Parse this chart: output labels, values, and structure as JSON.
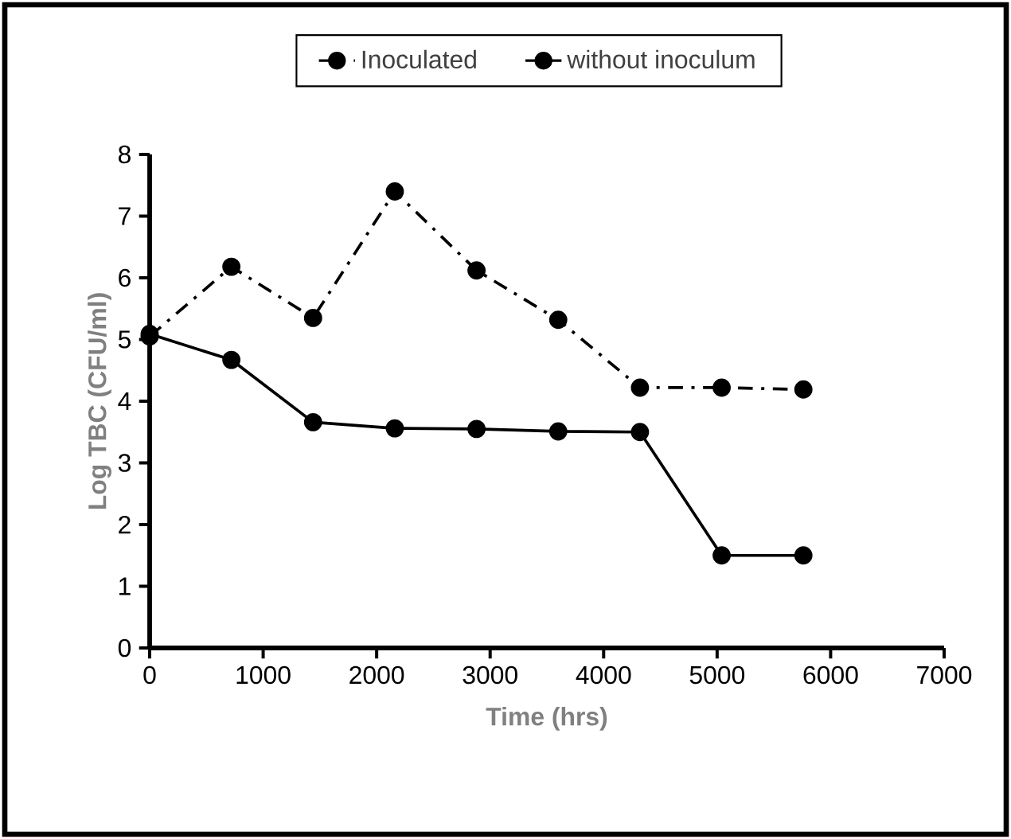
{
  "chart_data": {
    "type": "line",
    "xlabel": "Time (hrs)",
    "ylabel": "Log TBC (CFU/ml)",
    "x": [
      0,
      720,
      1440,
      2160,
      2880,
      3600,
      4320,
      5040,
      5760
    ],
    "series": [
      {
        "name": "Inoculated",
        "color": "#000000",
        "line_style": "dashed",
        "values": [
          5.05,
          6.18,
          5.35,
          7.4,
          6.12,
          5.32,
          4.22,
          4.22,
          4.19
        ]
      },
      {
        "name": "without inoculum",
        "color": "#000000",
        "line_style": "solid",
        "values": [
          5.09,
          4.67,
          3.66,
          3.56,
          3.55,
          3.51,
          3.5,
          1.5,
          1.5
        ]
      }
    ],
    "xlim": [
      0,
      7000
    ],
    "ylim": [
      0,
      8
    ],
    "xticks": [
      0,
      1000,
      2000,
      3000,
      4000,
      5000,
      6000,
      7000
    ],
    "yticks": [
      0,
      1,
      2,
      3,
      4,
      5,
      6,
      7,
      8
    ],
    "grid": false,
    "legend": "top",
    "marker": "circle"
  }
}
